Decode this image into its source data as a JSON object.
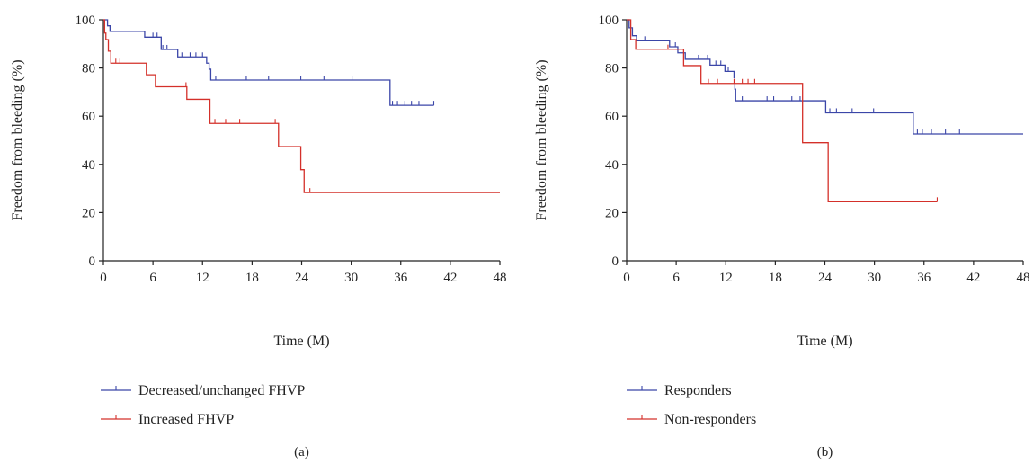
{
  "chart_data": [
    {
      "type": "line",
      "step": true,
      "panel_label": "(a)",
      "xlabel": "Time (M)",
      "ylabel": "Freedom from bleeding (%)",
      "xlim": [
        0,
        48
      ],
      "ylim": [
        0,
        100
      ],
      "xticks": [
        "0",
        "6",
        "12",
        "18",
        "24",
        "30",
        "36",
        "42",
        "48"
      ],
      "yticks": [
        "0",
        "20",
        "40",
        "60",
        "80",
        "100"
      ],
      "grid": false,
      "legend_position": "bottom-left",
      "series": [
        {
          "name": "Decreased/unchanged FHVP",
          "color": "#3b46a8",
          "points": [
            [
              0,
              100
            ],
            [
              0.5,
              97.5
            ],
            [
              0.8,
              95.2
            ],
            [
              5,
              92.8
            ],
            [
              7,
              87.7
            ],
            [
              9,
              84.6
            ],
            [
              12.5,
              82
            ],
            [
              12.8,
              79.5
            ],
            [
              13,
              75
            ],
            [
              34.7,
              75
            ],
            [
              34.7,
              64.5
            ],
            [
              40,
              64.5
            ]
          ],
          "censor_x": [
            6.0,
            6.5,
            7.2,
            7.7,
            9.5,
            10.5,
            11.2,
            12.0,
            13.6,
            17.3,
            20.0,
            23.9,
            26.7,
            30.1,
            35.0,
            35.6,
            36.5,
            37.3,
            38.2,
            40.0
          ]
        },
        {
          "name": "Increased FHVP",
          "color": "#d4302a",
          "points": [
            [
              0,
              100
            ],
            [
              0.15,
              94.5
            ],
            [
              0.3,
              91.8
            ],
            [
              0.6,
              87
            ],
            [
              0.9,
              82
            ],
            [
              5.2,
              77.2
            ],
            [
              6.3,
              72.2
            ],
            [
              10.1,
              67
            ],
            [
              12.9,
              57
            ],
            [
              21.1,
              57
            ],
            [
              21.2,
              47.4
            ],
            [
              23.8,
              47.4
            ],
            [
              23.9,
              37.8
            ],
            [
              24.3,
              28.3
            ],
            [
              48,
              28.3
            ]
          ],
          "censor_x": [
            1.5,
            2.0,
            10.0,
            13.5,
            14.8,
            16.5,
            20.8,
            25.0
          ]
        }
      ]
    },
    {
      "type": "line",
      "step": true,
      "panel_label": "(b)",
      "xlabel": "Time (M)",
      "ylabel": "Freedom from bleeding (%)",
      "xlim": [
        0,
        48
      ],
      "ylim": [
        0,
        100
      ],
      "xticks": [
        "0",
        "6",
        "12",
        "18",
        "24",
        "30",
        "36",
        "42",
        "48"
      ],
      "yticks": [
        "0",
        "20",
        "40",
        "60",
        "80",
        "100"
      ],
      "grid": false,
      "legend_position": "bottom-left",
      "series": [
        {
          "name": "Responders",
          "color": "#3b46a8",
          "points": [
            [
              0,
              100
            ],
            [
              0.3,
              96.7
            ],
            [
              0.7,
              93.4
            ],
            [
              1.2,
              91.3
            ],
            [
              5.2,
              88.8
            ],
            [
              6.2,
              86.3
            ],
            [
              7.1,
              83.6
            ],
            [
              10.1,
              81.2
            ],
            [
              11.9,
              78.6
            ],
            [
              13,
              76
            ],
            [
              13.1,
              71.2
            ],
            [
              13.2,
              66.4
            ],
            [
              23.8,
              66.4
            ],
            [
              24.1,
              61.4
            ],
            [
              34.5,
              61.4
            ],
            [
              34.7,
              52.6
            ],
            [
              48,
              52.6
            ]
          ],
          "censor_x": [
            2.2,
            5.9,
            8.7,
            9.8,
            10.8,
            11.4,
            12.3,
            14.0,
            17.0,
            17.8,
            20.0,
            21.0,
            24.6,
            25.4,
            27.3,
            29.9,
            35.2,
            35.8,
            36.9,
            38.6,
            40.3
          ]
        },
        {
          "name": "Non-responders",
          "color": "#d4302a",
          "points": [
            [
              0,
              100
            ],
            [
              0.5,
              91.8
            ],
            [
              1.1,
              87.8
            ],
            [
              6.9,
              81
            ],
            [
              9,
              73.6
            ],
            [
              21.1,
              73.6
            ],
            [
              21.3,
              49
            ],
            [
              24.2,
              49
            ],
            [
              24.4,
              24.5
            ],
            [
              37.6,
              24.5
            ]
          ],
          "censor_x": [
            5.0,
            9.9,
            11.0,
            13.0,
            14.0,
            14.7,
            15.5,
            37.6
          ]
        }
      ]
    }
  ]
}
